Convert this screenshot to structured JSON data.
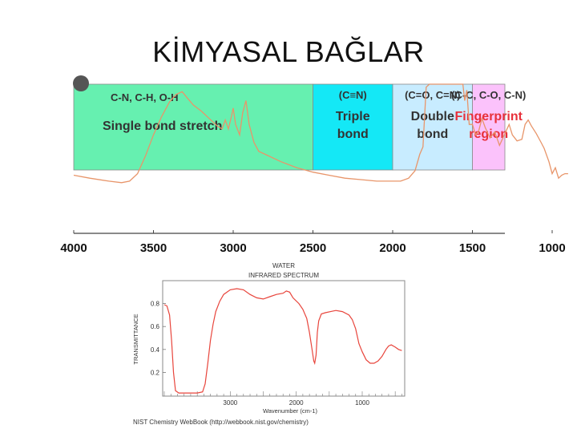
{
  "slide": {
    "title": "KİMYASAL BAĞLAR"
  },
  "chart_data": [
    {
      "type": "area",
      "regions": [
        {
          "line1": "C-N, C-H, O-H",
          "line2": "Single bond stretch",
          "line3": "",
          "from": 4000,
          "to": 2500,
          "color": "#66f0b0",
          "text_color": "#333333"
        },
        {
          "line1": "(C≡N)",
          "line2": "Triple",
          "line3": "bond",
          "from": 2500,
          "to": 2000,
          "color": "#14e8f6",
          "text_color": "#333333"
        },
        {
          "line1": "(C=O, C=N)",
          "line2": "Double",
          "line3": "bond",
          "from": 2000,
          "to": 1500,
          "color": "#c8ecff",
          "text_color": "#333333"
        },
        {
          "line1": "(C-C, C-O, C-N)",
          "line2": "Fingerprint",
          "line3": "region",
          "from": 1500,
          "to": 0,
          "color": "#fbc2fb",
          "text_color": "#e8303a"
        }
      ],
      "x_ticks": [
        "4000",
        "3500",
        "3000",
        "2500",
        "2000",
        "1500",
        "1000"
      ],
      "x_tick_values": [
        4000,
        3500,
        3000,
        2500,
        2000,
        1500,
        1000
      ],
      "xlim": [
        4000,
        500
      ],
      "spectrum_color": "#e8956a",
      "spectrum": [
        [
          4000,
          0.39
        ],
        [
          3900,
          0.37
        ],
        [
          3780,
          0.35
        ],
        [
          3700,
          0.34
        ],
        [
          3650,
          0.35
        ],
        [
          3600,
          0.4
        ],
        [
          3550,
          0.52
        ],
        [
          3500,
          0.66
        ],
        [
          3450,
          0.78
        ],
        [
          3400,
          0.88
        ],
        [
          3360,
          0.93
        ],
        [
          3320,
          0.95
        ],
        [
          3290,
          0.91
        ],
        [
          3250,
          0.86
        ],
        [
          3200,
          0.82
        ],
        [
          3150,
          0.77
        ],
        [
          3100,
          0.72
        ],
        [
          3070,
          0.7
        ],
        [
          3050,
          0.76
        ],
        [
          3030,
          0.7
        ],
        [
          3010,
          0.79
        ],
        [
          3000,
          0.84
        ],
        [
          2985,
          0.73
        ],
        [
          2960,
          0.66
        ],
        [
          2940,
          0.81
        ],
        [
          2920,
          0.89
        ],
        [
          2900,
          0.73
        ],
        [
          2870,
          0.61
        ],
        [
          2840,
          0.55
        ],
        [
          2800,
          0.53
        ],
        [
          2700,
          0.48
        ],
        [
          2600,
          0.44
        ],
        [
          2500,
          0.41
        ],
        [
          2400,
          0.39
        ],
        [
          2300,
          0.37
        ],
        [
          2200,
          0.36
        ],
        [
          2100,
          0.35
        ],
        [
          2000,
          0.35
        ],
        [
          1950,
          0.35
        ],
        [
          1900,
          0.37
        ],
        [
          1860,
          0.42
        ],
        [
          1830,
          0.53
        ],
        [
          1810,
          0.58
        ],
        [
          1790,
          0.98
        ],
        [
          1770,
          1.0
        ],
        [
          1680,
          1.0
        ],
        [
          1620,
          1.0
        ],
        [
          1560,
          1.0
        ],
        [
          1548,
          0.89
        ],
        [
          1535,
          0.96
        ],
        [
          1520,
          0.73
        ],
        [
          1500,
          0.73
        ],
        [
          1480,
          0.66
        ],
        [
          1460,
          0.69
        ],
        [
          1440,
          0.77
        ],
        [
          1420,
          0.71
        ],
        [
          1390,
          0.64
        ],
        [
          1360,
          0.68
        ],
        [
          1330,
          0.59
        ],
        [
          1300,
          0.66
        ],
        [
          1270,
          0.73
        ],
        [
          1250,
          0.66
        ],
        [
          1220,
          0.62
        ],
        [
          1190,
          0.63
        ],
        [
          1170,
          0.73
        ],
        [
          1150,
          0.76
        ],
        [
          1130,
          0.72
        ],
        [
          1100,
          0.67
        ],
        [
          1070,
          0.61
        ],
        [
          1050,
          0.57
        ],
        [
          1020,
          0.48
        ],
        [
          1000,
          0.4
        ],
        [
          980,
          0.44
        ],
        [
          960,
          0.37
        ],
        [
          940,
          0.39
        ],
        [
          920,
          0.4
        ],
        [
          900,
          0.4
        ]
      ]
    },
    {
      "type": "line",
      "title": "WATER",
      "subtitle": "INFRARED SPECTRUM",
      "ylabel": "TRANSMITTANCE",
      "xlabel": "Wavenumber (cm-1)",
      "x_ticks": [
        "3000",
        "2000",
        "1000"
      ],
      "x_tick_values": [
        3000,
        2000,
        1000
      ],
      "y_ticks": [
        "0.2",
        "0.4",
        "0.6",
        "0.8"
      ],
      "y_tick_values": [
        0.2,
        0.4,
        0.6,
        0.8
      ],
      "xlim": [
        4000,
        400
      ],
      "ylim": [
        0.0,
        1.0
      ],
      "line_color": "#e8453c",
      "footer": "NIST Chemistry WebBook (http://webbook.nist.gov/chemistry)",
      "series": [
        {
          "values": [
            [
              4000,
              0.79
            ],
            [
              3960,
              0.78
            ],
            [
              3920,
              0.7
            ],
            [
              3890,
              0.48
            ],
            [
              3860,
              0.2
            ],
            [
              3830,
              0.04
            ],
            [
              3780,
              0.02
            ],
            [
              3650,
              0.02
            ],
            [
              3500,
              0.02
            ],
            [
              3420,
              0.03
            ],
            [
              3380,
              0.1
            ],
            [
              3340,
              0.28
            ],
            [
              3300,
              0.48
            ],
            [
              3260,
              0.62
            ],
            [
              3220,
              0.73
            ],
            [
              3160,
              0.82
            ],
            [
              3100,
              0.88
            ],
            [
              3000,
              0.92
            ],
            [
              2900,
              0.93
            ],
            [
              2800,
              0.92
            ],
            [
              2700,
              0.88
            ],
            [
              2600,
              0.85
            ],
            [
              2500,
              0.84
            ],
            [
              2400,
              0.86
            ],
            [
              2300,
              0.88
            ],
            [
              2200,
              0.89
            ],
            [
              2150,
              0.91
            ],
            [
              2100,
              0.9
            ],
            [
              2050,
              0.85
            ],
            [
              1960,
              0.8
            ],
            [
              1900,
              0.75
            ],
            [
              1840,
              0.67
            ],
            [
              1800,
              0.55
            ],
            [
              1760,
              0.4
            ],
            [
              1735,
              0.3
            ],
            [
              1720,
              0.28
            ],
            [
              1700,
              0.35
            ],
            [
              1680,
              0.55
            ],
            [
              1660,
              0.65
            ],
            [
              1620,
              0.71
            ],
            [
              1560,
              0.72
            ],
            [
              1480,
              0.73
            ],
            [
              1400,
              0.74
            ],
            [
              1300,
              0.73
            ],
            [
              1200,
              0.7
            ],
            [
              1150,
              0.66
            ],
            [
              1100,
              0.58
            ],
            [
              1050,
              0.45
            ],
            [
              1000,
              0.38
            ],
            [
              940,
              0.31
            ],
            [
              880,
              0.28
            ],
            [
              820,
              0.28
            ],
            [
              760,
              0.3
            ],
            [
              700,
              0.34
            ],
            [
              640,
              0.4
            ],
            [
              600,
              0.43
            ],
            [
              560,
              0.44
            ],
            [
              500,
              0.42
            ],
            [
              450,
              0.4
            ],
            [
              400,
              0.39
            ]
          ]
        }
      ]
    }
  ]
}
